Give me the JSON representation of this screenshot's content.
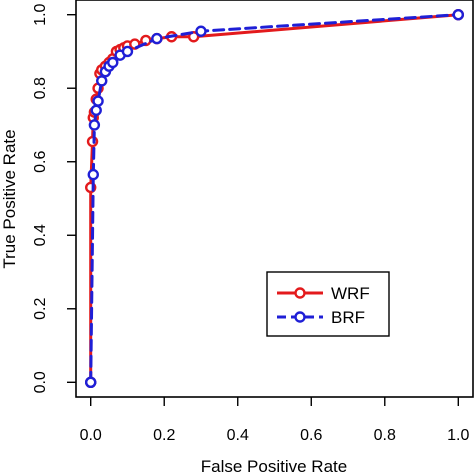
{
  "chart_data": {
    "type": "line",
    "xlabel": "False Positive Rate",
    "ylabel": "True Positive Rate",
    "xlim": [
      -0.04,
      1.04
    ],
    "ylim": [
      -0.04,
      1.04
    ],
    "xticks": [
      0.0,
      0.2,
      0.4,
      0.6,
      0.8,
      1.0
    ],
    "yticks": [
      0.0,
      0.2,
      0.4,
      0.6,
      0.8,
      1.0
    ],
    "xtick_labels": [
      "0.0",
      "0.2",
      "0.4",
      "0.6",
      "0.8",
      "1.0"
    ],
    "ytick_labels": [
      "0.0",
      "0.2",
      "0.4",
      "0.6",
      "0.8",
      "1.0"
    ],
    "grid": false,
    "legend_position": "lower-right",
    "series": [
      {
        "name": "WRF",
        "color": "#e31a1c",
        "line_style": "solid",
        "marker": "open-circle",
        "x": [
          0.0,
          0.0,
          0.005,
          0.007,
          0.01,
          0.015,
          0.02,
          0.025,
          0.03,
          0.04,
          0.05,
          0.06,
          0.07,
          0.08,
          0.09,
          0.1,
          0.12,
          0.15,
          0.18,
          0.22,
          0.28,
          1.0
        ],
        "y": [
          0.0,
          0.53,
          0.655,
          0.72,
          0.735,
          0.77,
          0.8,
          0.84,
          0.85,
          0.86,
          0.87,
          0.88,
          0.9,
          0.905,
          0.91,
          0.915,
          0.92,
          0.93,
          0.935,
          0.94,
          0.94,
          1.0
        ]
      },
      {
        "name": "BRF",
        "color": "#1f1fd6",
        "line_style": "dashed",
        "marker": "open-circle",
        "x": [
          0.0,
          0.0,
          0.007,
          0.01,
          0.015,
          0.02,
          0.03,
          0.04,
          0.05,
          0.06,
          0.08,
          0.1,
          0.18,
          0.3,
          1.0
        ],
        "y": [
          0.0,
          0.0,
          0.565,
          0.7,
          0.74,
          0.765,
          0.82,
          0.845,
          0.86,
          0.87,
          0.89,
          0.9,
          0.935,
          0.955,
          1.0
        ]
      }
    ]
  }
}
